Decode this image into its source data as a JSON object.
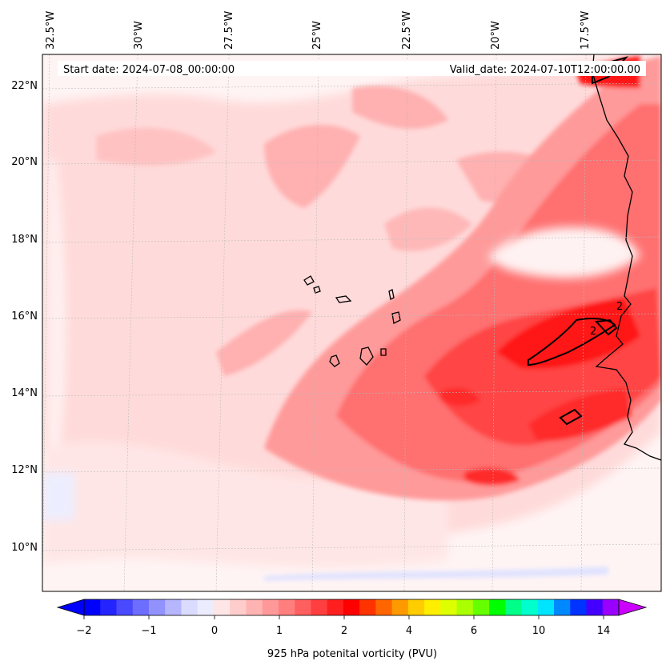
{
  "map": {
    "start_date_label": "Start date: 2024-07-08_00:00:00",
    "valid_date_label": "Valid_date: 2024-07-10T12:00:00.00",
    "lon_labels": [
      "32.5°W",
      "30°W",
      "27.5°W",
      "25°W",
      "22.5°W",
      "20°W",
      "17.5°W"
    ],
    "lat_labels": [
      "22°N",
      "20°N",
      "18°N",
      "16°N",
      "14°N",
      "12°N",
      "10°N"
    ],
    "contour_labels": [
      "2",
      "2"
    ],
    "colorbar": {
      "title": "925 hPa potenital vorticity (PVU)",
      "tick_labels": [
        "−2",
        "−1",
        "0",
        "1",
        "2",
        "4",
        "6",
        "10",
        "14"
      ],
      "colors": [
        "#0000ff",
        "#2424ff",
        "#4949ff",
        "#6d6dff",
        "#9292ff",
        "#b6b6ff",
        "#dbdbff",
        "#ececff",
        "#ffe6e6",
        "#ffcccc",
        "#ffb3b3",
        "#ff9999",
        "#ff7f7f",
        "#ff5f5f",
        "#ff3f3f",
        "#ff1f1f",
        "#ff0000",
        "#ff3300",
        "#ff6600",
        "#ff9900",
        "#ffcc00",
        "#ffee00",
        "#ddff00",
        "#aaff00",
        "#66ff00",
        "#00ff00",
        "#00ff88",
        "#00ffcc",
        "#00e5ff",
        "#0088ff",
        "#0033ff",
        "#4400ff",
        "#9900ff"
      ],
      "under_color": "#0000ff",
      "over_color": "#cc00ff"
    },
    "field_colors": {
      "lightest": "#ffeeee",
      "light": "#ffd6d6",
      "medium": "#ffb0b0",
      "strong": "#ff8080",
      "stronger": "#ff4a4a",
      "max": "#ff1010",
      "negative": "#e6e8ff",
      "orange": "#ff7a1a"
    }
  }
}
